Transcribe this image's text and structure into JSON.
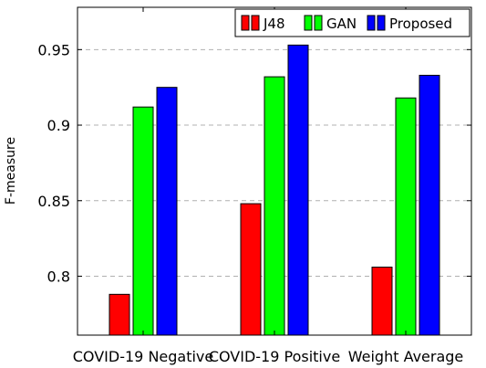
{
  "chart_data": {
    "type": "bar",
    "title": "",
    "xlabel": "",
    "ylabel": "F-measure",
    "categories": [
      "COVID-19 Negative",
      "COVID-19 Positive",
      "Weight Average"
    ],
    "series": [
      {
        "name": "J48",
        "color": "#ff0000",
        "values": [
          0.788,
          0.848,
          0.806
        ]
      },
      {
        "name": "GAN",
        "color": "#00ff00",
        "values": [
          0.912,
          0.932,
          0.918
        ]
      },
      {
        "name": "Proposed",
        "color": "#0000ff",
        "values": [
          0.925,
          0.953,
          0.933
        ]
      }
    ],
    "ylim": [
      0.761,
      0.978
    ],
    "yticks": [
      "0.8",
      "0.85",
      "0.9",
      "0.95"
    ],
    "grid": "y-dashed",
    "legend": "top-right"
  }
}
